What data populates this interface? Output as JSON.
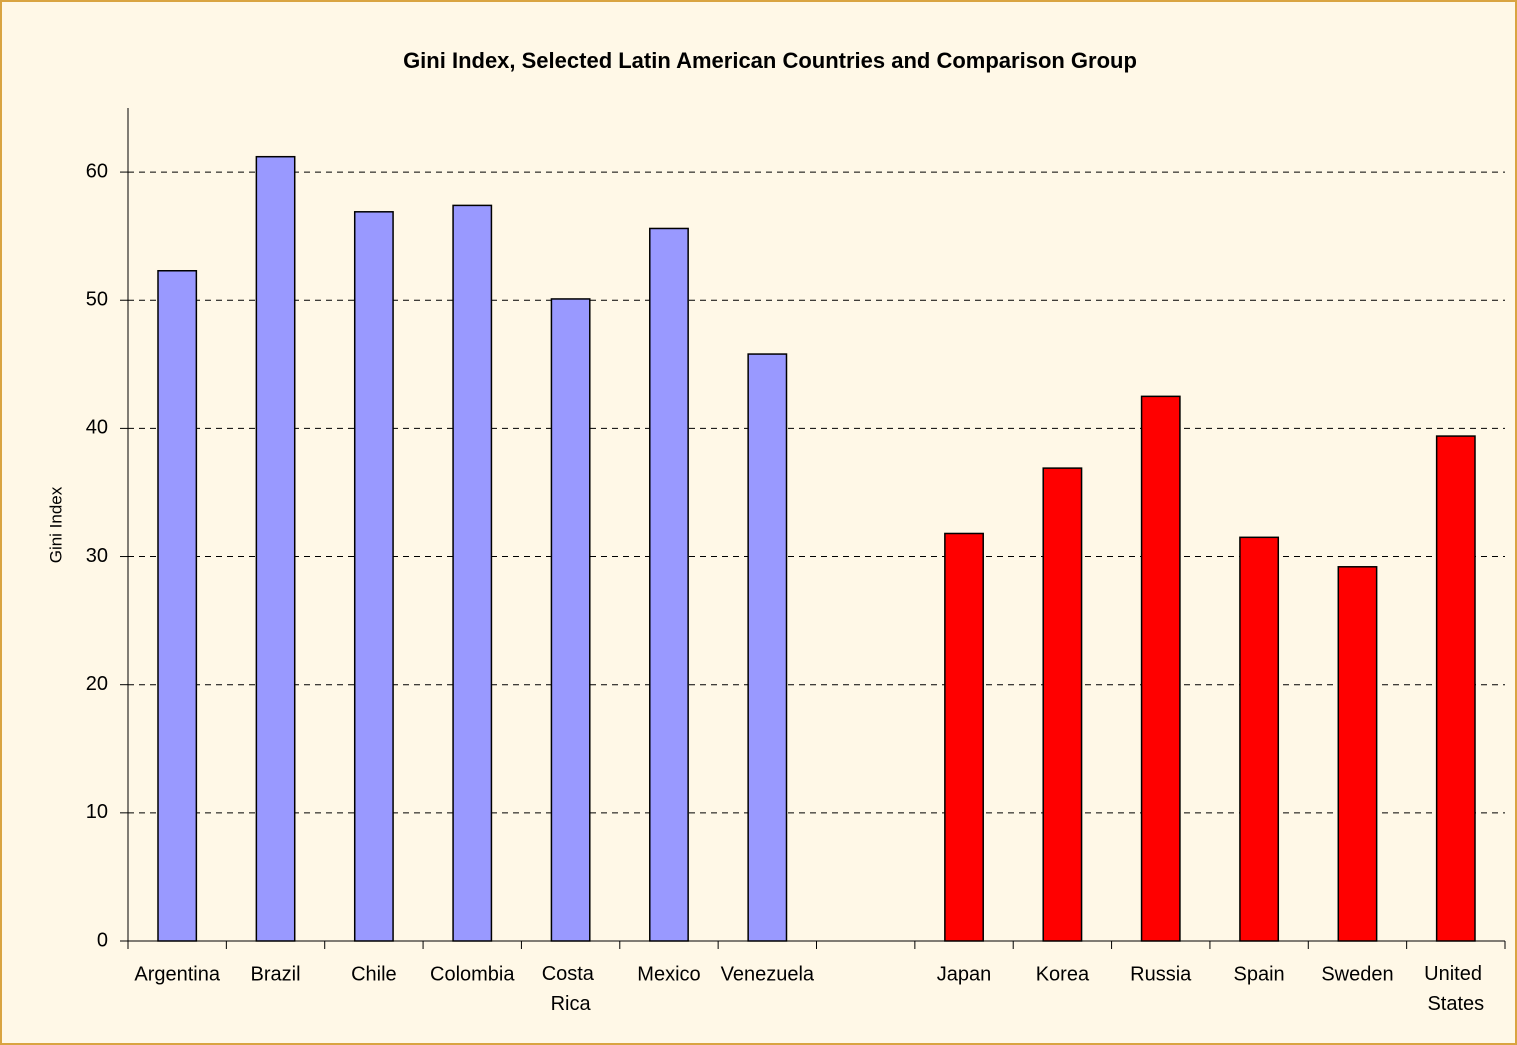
{
  "chart_data": {
    "type": "bar",
    "title": "Gini Index, Selected Latin American Countries and Comparison Group",
    "y_label": "Gini Index",
    "categories": [
      "Argentina",
      "Brazil",
      "Chile",
      "Colombia",
      "Costa Rica",
      "Mexico",
      "Venezuela",
      null,
      "Japan",
      "Korea",
      "Russia",
      "Spain",
      "Sweden",
      "United States"
    ],
    "values": [
      52.3,
      61.2,
      56.9,
      57.4,
      50.1,
      55.6,
      45.8,
      null,
      31.8,
      36.9,
      42.5,
      31.5,
      29.2,
      39.4
    ],
    "colors": [
      "#9999ff",
      "#9999ff",
      "#9999ff",
      "#9999ff",
      "#9999ff",
      "#9999ff",
      "#9999ff",
      null,
      "#ff0000",
      "#ff0000",
      "#ff0000",
      "#ff0000",
      "#ff0000",
      "#ff0000"
    ],
    "ylim": [
      0,
      65
    ],
    "yticks": [
      0,
      10,
      20,
      30,
      40,
      50,
      60
    ],
    "grid": true
  }
}
